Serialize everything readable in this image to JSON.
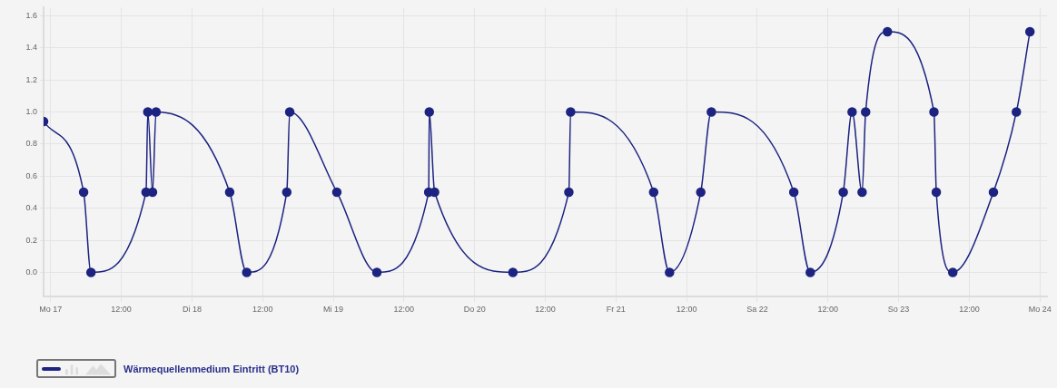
{
  "chart_data": {
    "type": "line",
    "x": [
      "--03-16T22:48",
      "--03-17T05:36",
      "--03-17T06:51",
      "--03-17T16:12",
      "--03-17T16:30",
      "--03-17T17:18",
      "--03-17T17:54",
      "--03-18T06:24",
      "--03-18T09:18",
      "--03-18T16:06",
      "--03-18T16:36",
      "--03-19T00:36",
      "--03-19T07:24",
      "--03-19T16:12",
      "--03-19T16:18",
      "--03-19T17:12",
      "--03-20T06:30",
      "--03-20T16:00",
      "--03-20T16:18",
      "--03-21T06:24",
      "--03-21T09:06",
      "--03-21T14:24",
      "--03-21T16:12",
      "--03-22T06:12",
      "--03-22T09:00",
      "--03-22T14:36",
      "--03-22T16:06",
      "--03-22T17:48",
      "--03-22T18:24",
      "--03-22T22:06",
      "--03-23T06:00",
      "--03-23T06:24",
      "--03-23T09:12",
      "--03-23T16:06",
      "--03-23T20:00",
      "--03-23T22:18"
    ],
    "series": [
      {
        "name": "Wärmequellenmedium Eintritt (BT10)",
        "color": "#1c2380",
        "values": [
          0.94,
          0.5,
          0,
          0.5,
          1,
          0.5,
          1,
          0.5,
          0,
          0.5,
          1,
          0.5,
          0,
          0.5,
          1,
          0.5,
          0,
          0.5,
          1,
          0.5,
          0,
          0.5,
          1,
          0.5,
          0,
          0.5,
          1,
          0.5,
          1,
          1.5,
          1,
          0.5,
          0,
          0.5,
          1,
          1.5
        ]
      }
    ],
    "xlim": [
      "--03-16T22:48",
      "--03-24T01:12"
    ],
    "xticks": [
      {
        "value": "--03-17",
        "label": "Mo 17"
      },
      {
        "value": "--03-17T12:00",
        "label": "12:00"
      },
      {
        "value": "--03-18",
        "label": "Di 18"
      },
      {
        "value": "--03-18T12:00",
        "label": "12:00"
      },
      {
        "value": "--03-19",
        "label": "Mi 19"
      },
      {
        "value": "--03-19T12:00",
        "label": "12:00"
      },
      {
        "value": "--03-20",
        "label": "Do 20"
      },
      {
        "value": "--03-20T12:00",
        "label": "12:00"
      },
      {
        "value": "--03-21",
        "label": "Fr 21"
      },
      {
        "value": "--03-21T12:00",
        "label": "12:00"
      },
      {
        "value": "--03-22",
        "label": "Sa 22"
      },
      {
        "value": "--03-22T12:00",
        "label": "12:00"
      },
      {
        "value": "--03-23",
        "label": "So 23"
      },
      {
        "value": "--03-23T12:00",
        "label": "12:00"
      },
      {
        "value": "--03-24",
        "label": "Mo 24"
      }
    ],
    "ylim": [
      -0.15,
      1.65
    ],
    "yticks": [
      {
        "value": 0,
        "label": "0.0"
      },
      {
        "value": 0.2,
        "label": "0.2"
      },
      {
        "value": 0.4,
        "label": "0.4"
      },
      {
        "value": 0.6,
        "label": "0.6"
      },
      {
        "value": 0.8,
        "label": "0.8"
      },
      {
        "value": 1,
        "label": "1.0"
      },
      {
        "value": 1.2,
        "label": "1.2"
      },
      {
        "value": 1.4,
        "label": "1.4"
      },
      {
        "value": 1.6,
        "label": "1.6"
      }
    ],
    "grid": true,
    "legend": "bottom left",
    "marker": "circle",
    "line_style": "solid"
  }
}
